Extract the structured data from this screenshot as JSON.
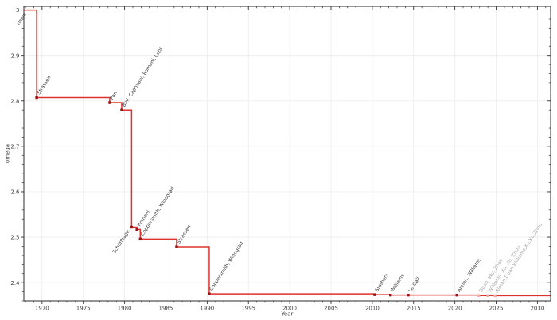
{
  "colors": {
    "line": "#de322c",
    "marker": "#9a1310",
    "muted_marker": "#f2aba5",
    "label_text": "#3b3b3b",
    "muted_label_text": "#a8a8a8",
    "grid": "#ececec",
    "spine": "#2b2b2b",
    "tick": "#333333",
    "background": "#ffffff"
  },
  "chart_data": {
    "type": "line",
    "subtype": "step-post",
    "title": "",
    "xlabel": "Year",
    "ylabel": "omega",
    "xlim": [
      1967.8,
      2031.6
    ],
    "ylim": [
      2.36,
      3.008
    ],
    "grid": true,
    "legend": "none",
    "x_tick_values": [
      1970,
      1975,
      1980,
      1985,
      1990,
      1995,
      2000,
      2005,
      2010,
      2015,
      2020,
      2025,
      2030
    ],
    "x_tick_labels": [
      "1970",
      "1975",
      "1980",
      "1985",
      "1990",
      "1995",
      "2000",
      "2005",
      "2010",
      "2015",
      "2020",
      "2025",
      "2030"
    ],
    "y_tick_values": [
      2.4,
      2.5,
      2.6,
      2.7,
      2.8,
      2.9,
      3.0
    ],
    "y_tick_labels": [
      "2.4",
      "2.5",
      "2.6",
      "2.7",
      "2.8",
      "2.9",
      "3"
    ],
    "x_minor_step": 1,
    "y_minor_step": 0.02,
    "start": {
      "label": "naive",
      "omega": 3.0,
      "label_year": 1968.35,
      "label_side": "below"
    },
    "events": [
      {
        "year": 1969.35,
        "omega": 2.8074,
        "label": "Strassen",
        "muted": false,
        "label_side": "above"
      },
      {
        "year": 1978.2,
        "omega": 2.796,
        "label": "Pan",
        "muted": false,
        "label_side": "above"
      },
      {
        "year": 1979.65,
        "omega": 2.78,
        "label": "Bini, Capovani, Romani, Lotti",
        "muted": false,
        "label_side": "above"
      },
      {
        "year": 1980.85,
        "omega": 2.522,
        "label": "Schönhage",
        "muted": false,
        "label_side": "below"
      },
      {
        "year": 1981.5,
        "omega": 2.517,
        "label": "Romani",
        "muted": false,
        "label_side": "above"
      },
      {
        "year": 1981.9,
        "omega": 2.496,
        "label": "Coppersmith, Winograd",
        "muted": false,
        "label_side": "above"
      },
      {
        "year": 1986.3,
        "omega": 2.479,
        "label": "Strassen",
        "muted": false,
        "label_side": "above"
      },
      {
        "year": 1990.25,
        "omega": 2.3755,
        "label": "Coppersmith, Winograd",
        "muted": false,
        "label_side": "above"
      },
      {
        "year": 2010.3,
        "omega": 2.3737,
        "label": "Stothers",
        "muted": false,
        "label_side": "above"
      },
      {
        "year": 2012.2,
        "omega": 2.3729,
        "label": "Williams",
        "muted": false,
        "label_side": "above"
      },
      {
        "year": 2014.35,
        "omega": 2.37287,
        "label": "Le Gall",
        "muted": false,
        "label_side": "above"
      },
      {
        "year": 2020.25,
        "omega": 2.37286,
        "label": "Alman, Williams",
        "muted": false,
        "label_side": "above"
      },
      {
        "year": 2022.9,
        "omega": 2.37188,
        "label": "Duan, Wu, Zhou",
        "muted": true,
        "label_side": "above"
      },
      {
        "year": 2024.0,
        "omega": 2.371866,
        "label": "Williams, Xu, Xu, Zhou",
        "muted": true,
        "label_side": "above"
      },
      {
        "year": 2024.85,
        "omega": 2.371552,
        "label": "Alman,Duan,Williams,Xu,Xu,Zhou",
        "muted": true,
        "label_side": "above"
      }
    ]
  }
}
